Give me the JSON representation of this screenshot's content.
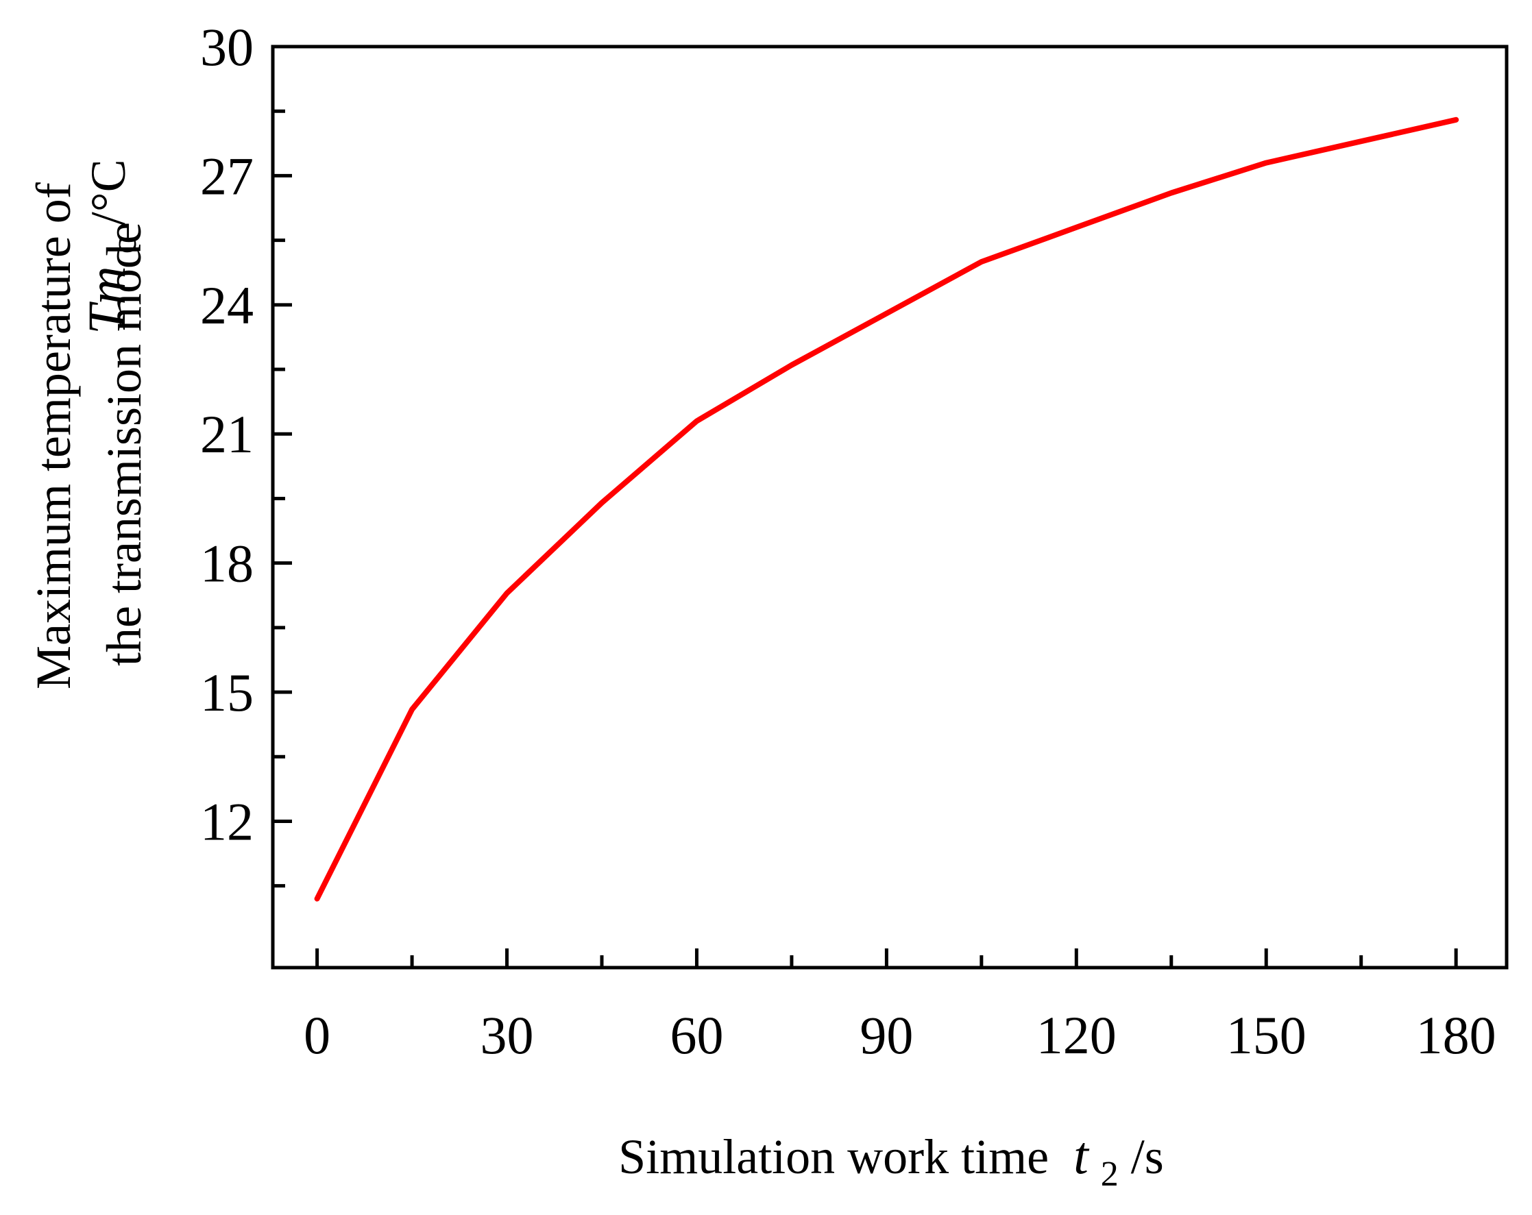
{
  "chart_data": {
    "type": "line",
    "title": "",
    "xlabel": {
      "text": "Simulation work time",
      "symbol": "t",
      "subscript": "2",
      "unit": " /s"
    },
    "ylabel": {
      "line1": "Maximum temperature of",
      "line2": "the transmission mode",
      "symbol": "Tm",
      "subscript": "c",
      "unit": " /°C"
    },
    "xlim": [
      -7,
      188
    ],
    "ylim": [
      8.6,
      30
    ],
    "xticks": [
      0,
      30,
      60,
      90,
      120,
      150,
      180
    ],
    "xticks_minor": [
      15,
      45,
      75,
      105,
      135,
      165
    ],
    "yticks": [
      12,
      15,
      18,
      21,
      24,
      27,
      30
    ],
    "yticks_minor": [
      10.5,
      13.5,
      16.5,
      19.5,
      22.5,
      25.5,
      28.5
    ],
    "grid": false,
    "legend": "none",
    "series": [
      {
        "color": "#ff0000",
        "x": [
          0,
          15,
          30,
          45,
          60,
          75,
          90,
          105,
          120,
          135,
          150,
          165,
          180
        ],
        "y": [
          10.2,
          14.6,
          17.3,
          19.4,
          21.3,
          22.6,
          23.8,
          25.0,
          25.8,
          26.6,
          27.3,
          27.8,
          28.3
        ]
      }
    ]
  }
}
